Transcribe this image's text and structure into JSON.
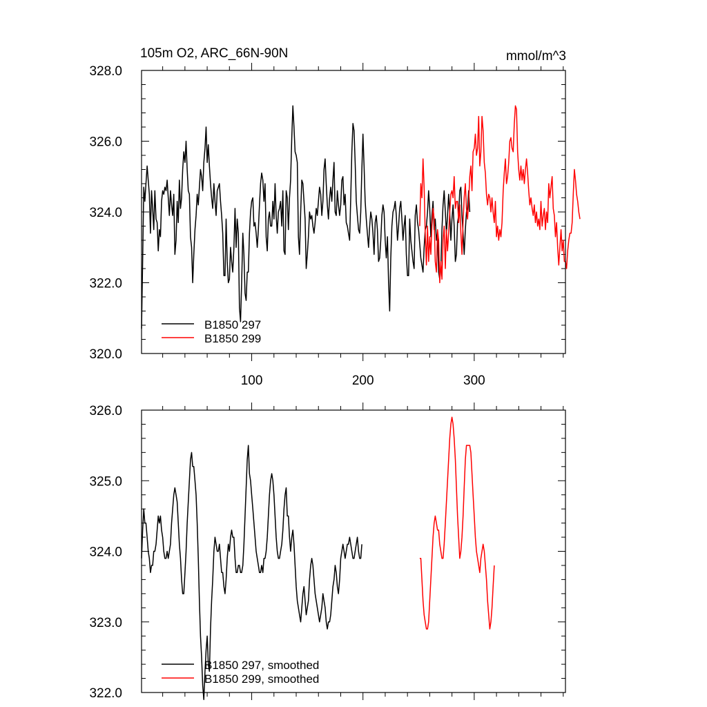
{
  "chart_data": [
    {
      "type": "line",
      "title_left": "105m O2, ARC_66N-90N",
      "title_right": "mmol/m^3",
      "xlim": [
        1,
        382
      ],
      "ylim": [
        320,
        328
      ],
      "y_ticks": [
        "320.0",
        "322.0",
        "324.0",
        "326.0",
        "328.0"
      ],
      "x_ticks": [
        "100",
        "200",
        "300"
      ],
      "legend_position": "bottom-left",
      "series": [
        {
          "name": "B1850 297",
          "color": "#000000",
          "x_start": 1,
          "values": [
            320.7,
            322.6,
            324.7,
            324.3,
            324.8,
            325.3,
            324.9,
            324.5,
            323.4,
            324.6,
            324.1,
            323.5,
            324.6,
            323.8,
            323.7,
            322.9,
            323.5,
            323.3,
            324.3,
            324.6,
            324.5,
            324.7,
            324.6,
            324.9,
            324.4,
            323.9,
            324.6,
            324.2,
            323.9,
            324.5,
            322.8,
            323.2,
            324.3,
            323.7,
            324.9,
            324.1,
            324.4,
            325.2,
            325.7,
            325.4,
            326.0,
            325.2,
            324.6,
            324.5,
            323.3,
            323.0,
            322.0,
            322.8,
            323.5,
            323.9,
            324.5,
            324.2,
            324.7,
            325.2,
            325.0,
            324.6,
            325.4,
            325.8,
            326.4,
            325.4,
            325.9,
            325.3,
            324.8,
            324.4,
            324.1,
            324.8,
            324.3,
            323.9,
            324.6,
            324.7,
            324.8,
            324.3,
            323.9,
            323.4,
            322.2,
            322.2,
            323.8,
            322.6,
            322.0,
            322.1,
            323.0,
            322.6,
            322.3,
            323.0,
            324.1,
            323.0,
            323.8,
            323.4,
            321.3,
            320.9,
            322.0,
            323.4,
            322.8,
            321.7,
            321.5,
            322.3,
            322.3,
            323.4,
            324.0,
            324.3,
            324.4,
            323.6,
            323.7,
            323.4,
            323.0,
            323.5,
            324.2,
            324.8,
            325.1,
            324.9,
            324.3,
            324.8,
            323.3,
            322.9,
            323.8,
            324.0,
            323.6,
            323.6,
            324.3,
            323.8,
            324.8,
            323.9,
            323.4,
            324.0,
            324.1,
            324.3,
            323.6,
            324.6,
            322.9,
            322.8,
            324.6,
            324.4,
            323.5,
            324.4,
            324.9,
            326.1,
            327.0,
            326.4,
            325.7,
            325.6,
            325.4,
            323.3,
            322.8,
            324.0,
            324.9,
            324.8,
            324.3,
            323.8,
            322.4,
            322.8,
            323.3,
            324.0,
            323.8,
            323.9,
            323.6,
            323.4,
            323.7,
            324.1,
            323.9,
            324.3,
            324.7,
            324.5,
            323.9,
            324.3,
            325.2,
            325.5,
            324.8,
            324.2,
            323.8,
            324.4,
            324.7,
            324.3,
            324.9,
            325.4,
            324.0,
            323.9,
            324.6,
            324.2,
            323.9,
            324.2,
            324.9,
            325.0,
            324.2,
            324.5,
            323.7,
            323.6,
            323.4,
            323.2,
            324.4,
            325.7,
            326.5,
            326.3,
            325.4,
            324.3,
            323.9,
            323.5,
            323.4,
            324.0,
            325.2,
            326.2,
            325.3,
            324.3,
            323.8,
            323.4,
            323.0,
            323.6,
            324.0,
            323.8,
            323.4,
            322.8,
            323.7,
            323.9,
            323.5,
            322.6,
            322.7,
            323.2,
            323.9,
            324.2,
            324.0,
            323.2,
            322.7,
            323.3,
            322.0,
            321.2,
            322.7,
            323.6,
            324.0,
            324.1,
            324.3,
            323.9,
            323.2,
            323.6,
            324.1,
            324.3,
            323.8,
            323.2,
            323.6,
            323.9,
            322.8,
            322.2,
            322.2,
            323.8,
            323.2,
            322.9,
            322.6,
            322.4,
            323.9,
            324.2,
            323.7,
            323.5,
            323.1,
            322.7,
            322.5,
            322.3,
            323.0,
            323.5,
            323.6,
            324.0,
            324.6,
            324.1,
            323.3,
            323.9,
            324.3,
            323.5,
            323.8,
            323.2,
            323.4,
            322.3,
            322.1,
            322.4,
            323.5,
            324.2,
            324.6,
            324.0,
            323.4,
            323.9,
            324.5,
            324.0,
            323.2,
            323.8,
            324.2,
            323.6,
            322.6,
            322.8,
            323.7,
            323.9,
            324.6,
            324.7,
            323.9,
            323.4,
            322.8,
            323.5,
            324.0,
            324.1,
            324.6,
            324.0
          ],
          "smoothed_values": [
            323.9,
            324.3,
            324.6,
            324.4,
            324.4,
            324.2,
            324.0,
            323.9,
            323.7,
            323.8,
            323.8,
            324.0,
            324.0,
            324.1,
            324.3,
            324.5,
            324.4,
            324.5,
            324.3,
            324.2,
            324.0,
            323.9,
            323.9,
            324.0,
            323.9,
            324.0,
            324.1,
            324.4,
            324.6,
            324.8,
            324.9,
            324.8,
            324.7,
            324.4,
            324.1,
            323.9,
            323.6,
            323.4,
            323.4,
            323.7,
            324.0,
            324.4,
            324.7,
            325.0,
            325.3,
            325.4,
            325.2,
            325.2,
            325.0,
            324.8,
            324.4,
            323.9,
            323.3,
            322.8,
            322.5,
            322.1,
            321.9,
            322.3,
            322.6,
            322.8,
            322.4,
            322.3,
            322.9,
            323.3,
            323.6,
            324.0,
            324.2,
            324.1,
            324.0,
            324.0,
            324.1,
            323.9,
            323.7,
            323.7,
            323.5,
            323.4,
            323.6,
            323.9,
            324.1,
            324.0,
            324.2,
            324.3,
            324.2,
            324.2,
            323.9,
            323.7,
            323.7,
            323.8,
            323.8,
            323.7,
            323.7,
            323.8,
            324.1,
            324.5,
            324.9,
            325.3,
            325.5,
            325.1,
            325.0,
            324.8,
            324.6,
            324.4,
            324.2,
            324.0,
            323.9,
            323.8,
            323.7,
            323.7,
            323.8,
            323.7,
            323.9,
            323.9,
            324.0,
            324.2,
            324.5,
            324.8,
            325.0,
            325.1,
            325.0,
            324.8,
            324.5,
            324.2,
            324.0,
            323.9,
            323.9,
            324.0,
            324.1,
            324.3,
            324.6,
            324.8,
            324.9,
            324.5,
            324.5,
            324.2,
            324.0,
            324.2,
            324.3,
            324.1,
            323.8,
            323.5,
            323.3,
            323.2,
            323.1,
            323.0,
            323.2,
            323.4,
            323.5,
            323.3,
            323.1,
            323.2,
            323.3,
            323.6,
            323.8,
            323.9,
            323.8,
            323.6,
            323.4,
            323.3,
            323.2,
            323.1,
            323.0,
            323.1,
            323.2,
            323.4,
            323.3,
            323.2,
            323.0,
            322.9,
            323.0,
            323.0,
            323.1,
            323.3,
            323.5,
            323.6,
            323.8,
            323.7,
            323.5,
            323.4,
            323.6,
            323.9,
            324.0,
            324.1,
            324.0,
            323.9,
            324.0,
            324.1,
            324.1,
            324.2,
            324.1,
            324.0,
            323.9,
            323.9,
            324.0,
            324.1,
            324.2,
            324.0,
            323.9,
            323.9,
            324.1
          ]
        },
        {
          "name": "B1850 299",
          "color": "#ff0000",
          "x_start": 251,
          "values": [
            323.6,
            324.8,
            324.4,
            325.5,
            324.7,
            323.4,
            322.5,
            323.6,
            322.6,
            323.3,
            322.8,
            323.6,
            324.1,
            323.8,
            322.6,
            322.3,
            323.5,
            323.2,
            322.0,
            322.6,
            322.1,
            323.2,
            323.6,
            322.4,
            323.5,
            322.9,
            323.4,
            324.0,
            324.5,
            324.6,
            324.4,
            325.0,
            324.1,
            324.3,
            324.3,
            323.7,
            324.2,
            323.4,
            322.8,
            323.7,
            324.4,
            324.8,
            324.1,
            323.8,
            324.3,
            325.0,
            325.3,
            324.6,
            325.7,
            325.8,
            326.2,
            325.6,
            325.8,
            326.7,
            325.3,
            325.7,
            326.7,
            326.3,
            325.4,
            325.1,
            324.5,
            324.2,
            324.5,
            324.4,
            324.0,
            324.4,
            324.0,
            323.7,
            324.3,
            323.3,
            323.6,
            323.2,
            323.5,
            323.3,
            323.7,
            324.6,
            325.1,
            325.5,
            324.8,
            325.0,
            325.4,
            326.0,
            326.1,
            325.8,
            325.7,
            326.5,
            327.0,
            326.9,
            325.7,
            325.2,
            324.9,
            325.3,
            324.9,
            325.2,
            324.8,
            325.2,
            325.5,
            325.1,
            324.6,
            324.2,
            324.4,
            324.1,
            323.9,
            324.2,
            323.7,
            324.0,
            323.6,
            323.8,
            323.5,
            324.3,
            323.6,
            323.9,
            324.1,
            323.5,
            324.0,
            323.7,
            324.8,
            324.4,
            324.7,
            325.0,
            324.1,
            323.9,
            323.3,
            323.7,
            323.0,
            322.5,
            323.0,
            323.5,
            322.9,
            323.2,
            322.6,
            322.6,
            322.4,
            322.9,
            323.2,
            323.4,
            323.4,
            323.7,
            324.5,
            325.2,
            324.9,
            324.5,
            324.3,
            324.0,
            323.8
          ],
          "smoothed_values": [
            323.9,
            323.9,
            323.6,
            323.3,
            323.1,
            323.0,
            322.9,
            322.9,
            323.0,
            323.3,
            323.6,
            323.9,
            324.2,
            324.4,
            324.5,
            324.4,
            324.3,
            324.3,
            324.1,
            324.0,
            323.9,
            323.9,
            324.1,
            324.4,
            324.7,
            325.0,
            325.3,
            325.6,
            325.8,
            325.9,
            325.8,
            325.6,
            325.3,
            324.9,
            324.5,
            324.2,
            323.9,
            324.0,
            324.2,
            324.5,
            324.9,
            325.3,
            325.5,
            325.5,
            325.5,
            325.5,
            325.4,
            325.1,
            324.8,
            324.5,
            324.2,
            324.0,
            323.9,
            323.8,
            323.7,
            323.9,
            324.0,
            324.1,
            324.0,
            323.8,
            323.6,
            323.3,
            323.1,
            322.9,
            323.0,
            323.2,
            323.5,
            323.8
          ]
        }
      ]
    },
    {
      "type": "line",
      "xlim": [
        1,
        382
      ],
      "ylim": [
        322,
        326
      ],
      "y_ticks": [
        "322.0",
        "323.0",
        "324.0",
        "325.0",
        "326.0"
      ],
      "legend_position": "bottom-left",
      "series": [
        {
          "name": "B1850 297, smoothed",
          "color": "#000000",
          "source": 0
        },
        {
          "name": "B1850 299, smoothed",
          "color": "#ff0000",
          "source": 1
        }
      ]
    }
  ]
}
